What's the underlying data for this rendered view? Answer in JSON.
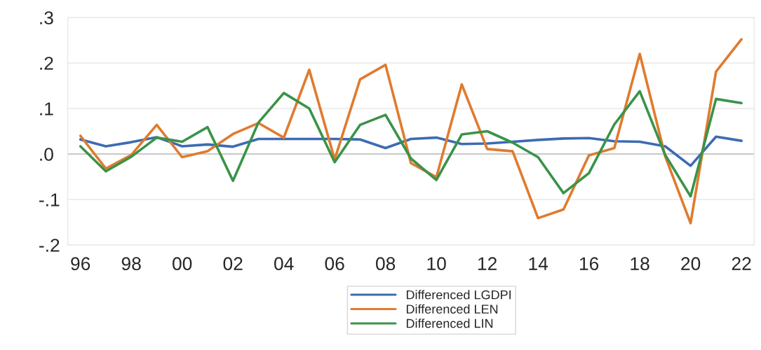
{
  "chart_data": {
    "type": "line",
    "x": [
      1996,
      1997,
      1998,
      1999,
      2000,
      2001,
      2002,
      2003,
      2004,
      2005,
      2006,
      2007,
      2008,
      2009,
      2010,
      2011,
      2012,
      2013,
      2014,
      2015,
      2016,
      2017,
      2018,
      2019,
      2020,
      2021,
      2022
    ],
    "series": [
      {
        "name": "Differenced LGDPI",
        "color": "#3d6bb3",
        "values": [
          0.032,
          0.017,
          0.026,
          0.037,
          0.017,
          0.021,
          0.016,
          0.033,
          0.033,
          0.033,
          0.033,
          0.032,
          0.013,
          0.033,
          0.036,
          0.022,
          0.023,
          0.027,
          0.031,
          0.034,
          0.035,
          0.028,
          0.027,
          0.017,
          -0.026,
          0.038,
          0.029
        ]
      },
      {
        "name": "Differenced LEN",
        "color": "#e07b2e",
        "values": [
          0.04,
          -0.032,
          -0.002,
          0.064,
          -0.007,
          0.006,
          0.044,
          0.068,
          0.036,
          0.185,
          -0.012,
          0.164,
          0.196,
          -0.02,
          -0.051,
          0.153,
          0.011,
          0.006,
          -0.141,
          -0.122,
          -0.003,
          0.013,
          0.22,
          -0.005,
          -0.152,
          0.181,
          0.252
        ]
      },
      {
        "name": "Differenced LIN",
        "color": "#3a9348",
        "values": [
          0.017,
          -0.038,
          -0.006,
          0.036,
          0.027,
          0.059,
          -0.059,
          0.069,
          0.134,
          0.1,
          -0.018,
          0.064,
          0.086,
          -0.01,
          -0.057,
          0.043,
          0.05,
          0.025,
          -0.007,
          -0.086,
          -0.042,
          0.065,
          0.138,
          -0.002,
          -0.093,
          0.121,
          0.112
        ]
      }
    ],
    "xlim": [
      1995.5,
      2022.5
    ],
    "xticks": [
      {
        "value": 1996,
        "label": "96"
      },
      {
        "value": 1998,
        "label": "98"
      },
      {
        "value": 2000,
        "label": "00"
      },
      {
        "value": 2002,
        "label": "02"
      },
      {
        "value": 2004,
        "label": "04"
      },
      {
        "value": 2006,
        "label": "06"
      },
      {
        "value": 2008,
        "label": "08"
      },
      {
        "value": 2010,
        "label": "10"
      },
      {
        "value": 2012,
        "label": "12"
      },
      {
        "value": 2014,
        "label": "14"
      },
      {
        "value": 2016,
        "label": "16"
      },
      {
        "value": 2018,
        "label": "18"
      },
      {
        "value": 2020,
        "label": "20"
      },
      {
        "value": 2022,
        "label": "22"
      }
    ],
    "ylim": [
      -0.2,
      0.3
    ],
    "yticks": [
      {
        "value": -0.2,
        "label": "-.2"
      },
      {
        "value": -0.1,
        "label": "-.1"
      },
      {
        "value": 0,
        "label": ".0"
      },
      {
        "value": 0.1,
        "label": ".1"
      },
      {
        "value": 0.2,
        "label": ".2"
      },
      {
        "value": 0.3,
        "label": ".3"
      }
    ],
    "ref_lines": [
      {
        "axis": "y",
        "value": 0,
        "color": "#bbbbbb"
      }
    ],
    "grid": "y",
    "legend": "bottom",
    "marker": "none",
    "line_style": "solid"
  }
}
